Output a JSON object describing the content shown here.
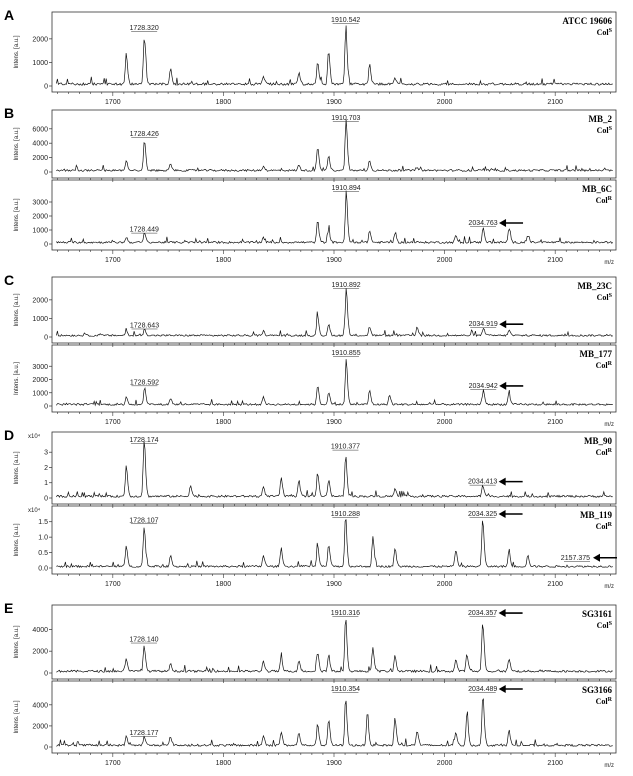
{
  "chart_data": [
    {
      "type": "line",
      "panel": "A",
      "strain": "ATCC 19606",
      "col_base": "Col",
      "col_sup": "S",
      "ylabel": "Intens. [a.u.]",
      "y_multiplier": "",
      "yticks": [
        "0",
        "1000",
        "2000"
      ],
      "ylim": [
        0,
        2800
      ],
      "xlim": [
        1645,
        2155
      ],
      "xticks": [
        1700,
        1800,
        1900,
        2000,
        2100
      ],
      "xlabel": "",
      "unit_label": "",
      "peaks": [
        {
          "mz": 1712,
          "h": 1100
        },
        {
          "mz": 1728.32,
          "h": 1700,
          "label": "1728.320"
        },
        {
          "mz": 1752,
          "h": 550
        },
        {
          "mz": 1836,
          "h": 300
        },
        {
          "mz": 1868,
          "h": 400
        },
        {
          "mz": 1885,
          "h": 800
        },
        {
          "mz": 1895,
          "h": 1200
        },
        {
          "mz": 1910.542,
          "h": 2100,
          "label": "1910.542"
        },
        {
          "mz": 1932,
          "h": 700
        },
        {
          "mz": 1955,
          "h": 200
        }
      ],
      "arrows": []
    },
    {
      "type": "line",
      "panel": "B",
      "strain": "MB_2",
      "col_base": "Col",
      "col_sup": "S",
      "ylabel": "Intens. [a.u.]",
      "y_multiplier": "",
      "yticks": [
        "0",
        "2000",
        "4000",
        "6000"
      ],
      "ylim": [
        0,
        7500
      ],
      "xlim": [
        1645,
        2155
      ],
      "xticks": [
        1700,
        1800,
        1900,
        2000,
        2100
      ],
      "xlabel": "",
      "unit_label": "",
      "peaks": [
        {
          "mz": 1712,
          "h": 1200
        },
        {
          "mz": 1728.426,
          "h": 3500,
          "label": "1728.426"
        },
        {
          "mz": 1752,
          "h": 800
        },
        {
          "mz": 1836,
          "h": 500
        },
        {
          "mz": 1868,
          "h": 600
        },
        {
          "mz": 1885,
          "h": 2700
        },
        {
          "mz": 1895,
          "h": 1700
        },
        {
          "mz": 1910.703,
          "h": 6300,
          "label": "1910.703"
        },
        {
          "mz": 1932,
          "h": 1200
        },
        {
          "mz": 1975,
          "h": 400
        }
      ],
      "arrows": []
    },
    {
      "type": "line",
      "panel": "B",
      "strain": "MB_6C",
      "col_base": "Col",
      "col_sup": "R",
      "ylabel": "Intens. [a.u.]",
      "y_multiplier": "",
      "yticks": [
        "0",
        "1000",
        "2000",
        "3000"
      ],
      "ylim": [
        0,
        4000
      ],
      "xlim": [
        1645,
        2155
      ],
      "xticks": [
        1700,
        1800,
        1900,
        2000,
        2100
      ],
      "xlabel": "",
      "unit_label": "m/z",
      "peaks": [
        {
          "mz": 1712,
          "h": 300
        },
        {
          "mz": 1728.449,
          "h": 550,
          "label": "1728.449"
        },
        {
          "mz": 1836,
          "h": 300
        },
        {
          "mz": 1885,
          "h": 1300
        },
        {
          "mz": 1895,
          "h": 700
        },
        {
          "mz": 1910.894,
          "h": 3100,
          "label": "1910.894"
        },
        {
          "mz": 1932,
          "h": 700
        },
        {
          "mz": 1955,
          "h": 500
        },
        {
          "mz": 2010,
          "h": 400
        },
        {
          "mz": 2034.763,
          "h": 900,
          "label": "2034.763"
        },
        {
          "mz": 2058,
          "h": 800
        },
        {
          "mz": 2075,
          "h": 400
        }
      ],
      "arrows": [
        {
          "mz": 2034.763
        }
      ]
    },
    {
      "type": "line",
      "panel": "C",
      "strain": "MB_23C",
      "col_base": "Col",
      "col_sup": "S",
      "ylabel": "Intens. [a.u.]",
      "y_multiplier": "",
      "yticks": [
        "0",
        "1000",
        "2000"
      ],
      "ylim": [
        0,
        2800
      ],
      "xlim": [
        1645,
        2155
      ],
      "xticks": [
        1700,
        1800,
        1900,
        2000,
        2100
      ],
      "xlabel": "",
      "unit_label": "",
      "peaks": [
        {
          "mz": 1712,
          "h": 200
        },
        {
          "mz": 1728.643,
          "h": 300,
          "label": "1728.643"
        },
        {
          "mz": 1836,
          "h": 200
        },
        {
          "mz": 1885,
          "h": 900
        },
        {
          "mz": 1895,
          "h": 500
        },
        {
          "mz": 1910.892,
          "h": 2200,
          "label": "1910.892"
        },
        {
          "mz": 1932,
          "h": 400
        },
        {
          "mz": 1975,
          "h": 400
        },
        {
          "mz": 2034.919,
          "h": 350,
          "label": "2034.919"
        },
        {
          "mz": 2058,
          "h": 250
        }
      ],
      "arrows": [
        {
          "mz": 2034.919
        }
      ]
    },
    {
      "type": "line",
      "panel": "C",
      "strain": "MB_177",
      "col_base": "Col",
      "col_sup": "R",
      "ylabel": "Intens. [a.u.]",
      "y_multiplier": "",
      "yticks": [
        "0",
        "1000",
        "2000",
        "3000"
      ],
      "ylim": [
        0,
        4000
      ],
      "xlim": [
        1645,
        2155
      ],
      "xticks": [
        1700,
        1800,
        1900,
        2000,
        2100
      ],
      "xlabel": "",
      "unit_label": "m/z",
      "peaks": [
        {
          "mz": 1712,
          "h": 500
        },
        {
          "mz": 1728.592,
          "h": 1100,
          "label": "1728.592"
        },
        {
          "mz": 1752,
          "h": 400
        },
        {
          "mz": 1836,
          "h": 500
        },
        {
          "mz": 1885,
          "h": 1200
        },
        {
          "mz": 1895,
          "h": 800
        },
        {
          "mz": 1910.855,
          "h": 2900,
          "label": "1910.855"
        },
        {
          "mz": 1932,
          "h": 900
        },
        {
          "mz": 1950,
          "h": 600
        },
        {
          "mz": 2034.942,
          "h": 900,
          "label": "2034.942"
        },
        {
          "mz": 2058,
          "h": 700
        }
      ],
      "arrows": [
        {
          "mz": 2034.942
        }
      ]
    },
    {
      "type": "line",
      "panel": "D",
      "strain": "MB_90",
      "col_base": "Col",
      "col_sup": "R",
      "ylabel": "Intens. [a.u.]",
      "y_multiplier": "x10⁴",
      "yticks": [
        "0",
        "1",
        "2",
        "3"
      ],
      "ylim": [
        0,
        3.8
      ],
      "xlim": [
        1645,
        2155
      ],
      "xticks": [
        1700,
        1800,
        1900,
        2000,
        2100
      ],
      "xlabel": "",
      "unit_label": "",
      "peaks": [
        {
          "mz": 1712,
          "h": 1.7
        },
        {
          "mz": 1728.174,
          "h": 3.3,
          "label": "1728.174"
        },
        {
          "mz": 1770,
          "h": 0.6
        },
        {
          "mz": 1836,
          "h": 0.5
        },
        {
          "mz": 1852,
          "h": 1.0
        },
        {
          "mz": 1868,
          "h": 0.9
        },
        {
          "mz": 1885,
          "h": 1.3
        },
        {
          "mz": 1895,
          "h": 0.9
        },
        {
          "mz": 1910.377,
          "h": 2.3,
          "label": "1910.377"
        },
        {
          "mz": 1955,
          "h": 0.4
        },
        {
          "mz": 2034.413,
          "h": 0.6,
          "label": "2034.413"
        }
      ],
      "arrows": [
        {
          "mz": 2034.413
        }
      ]
    },
    {
      "type": "line",
      "panel": "D",
      "strain": "MB_119",
      "col_base": "Col",
      "col_sup": "R",
      "ylabel": "Intens. [a.u.]",
      "y_multiplier": "x10⁴",
      "yticks": [
        "0.0",
        "0.5",
        "1.0",
        "1.5"
      ],
      "ylim": [
        0,
        1.75
      ],
      "xlim": [
        1645,
        2155
      ],
      "xticks": [
        1700,
        1800,
        1900,
        2000,
        2100
      ],
      "xlabel": "",
      "unit_label": "m/z",
      "peaks": [
        {
          "mz": 1712,
          "h": 0.55
        },
        {
          "mz": 1728.107,
          "h": 1.05,
          "label": "1728.107"
        },
        {
          "mz": 1752,
          "h": 0.3
        },
        {
          "mz": 1836,
          "h": 0.3
        },
        {
          "mz": 1852,
          "h": 0.5
        },
        {
          "mz": 1885,
          "h": 0.55
        },
        {
          "mz": 1895,
          "h": 0.6
        },
        {
          "mz": 1910.288,
          "h": 1.4,
          "label": "1910.288"
        },
        {
          "mz": 1935,
          "h": 0.8
        },
        {
          "mz": 1955,
          "h": 0.5
        },
        {
          "mz": 2010,
          "h": 0.45
        },
        {
          "mz": 2034.325,
          "h": 1.3,
          "label": "2034.325"
        },
        {
          "mz": 2058,
          "h": 0.4
        },
        {
          "mz": 2075,
          "h": 0.3
        },
        {
          "mz": 2157.375,
          "h": 0.15,
          "label": "2157.375"
        }
      ],
      "arrows": [
        {
          "mz": 2034.325
        },
        {
          "mz": 2157.375
        }
      ]
    },
    {
      "type": "line",
      "panel": "E",
      "strain": "SG3161",
      "col_base": "Col",
      "col_sup": "S",
      "ylabel": "Intens. [a.u.]",
      "y_multiplier": "",
      "yticks": [
        "0",
        "2000",
        "4000"
      ],
      "ylim": [
        0,
        5500
      ],
      "xlim": [
        1645,
        2155
      ],
      "xticks": [
        1700,
        1800,
        1900,
        2000,
        2100
      ],
      "xlabel": "",
      "unit_label": "",
      "peaks": [
        {
          "mz": 1712,
          "h": 1000
        },
        {
          "mz": 1728.14,
          "h": 2000,
          "label": "1728.140"
        },
        {
          "mz": 1752,
          "h": 600
        },
        {
          "mz": 1836,
          "h": 800
        },
        {
          "mz": 1852,
          "h": 1000
        },
        {
          "mz": 1868,
          "h": 800
        },
        {
          "mz": 1885,
          "h": 1500
        },
        {
          "mz": 1895,
          "h": 1200
        },
        {
          "mz": 1910.316,
          "h": 4200,
          "label": "1910.316"
        },
        {
          "mz": 1935,
          "h": 1800
        },
        {
          "mz": 1955,
          "h": 1200
        },
        {
          "mz": 2010,
          "h": 900
        },
        {
          "mz": 2020,
          "h": 1300
        },
        {
          "mz": 2034.357,
          "h": 3800,
          "label": "2034.357"
        },
        {
          "mz": 2058,
          "h": 1000
        }
      ],
      "arrows": [
        {
          "mz": 2034.357
        }
      ]
    },
    {
      "type": "line",
      "panel": "E",
      "strain": "SG3166",
      "col_base": "Col",
      "col_sup": "R",
      "ylabel": "Intens. [a.u.]",
      "y_multiplier": "",
      "yticks": [
        "0",
        "2000",
        "4000"
      ],
      "ylim": [
        0,
        5500
      ],
      "xlim": [
        1645,
        2155
      ],
      "xticks": [
        1700,
        1800,
        1900,
        2000,
        2100
      ],
      "xlabel": "",
      "unit_label": "m/z",
      "peaks": [
        {
          "mz": 1712,
          "h": 700
        },
        {
          "mz": 1728.177,
          "h": 700,
          "label": "1728.177"
        },
        {
          "mz": 1752,
          "h": 700
        },
        {
          "mz": 1836,
          "h": 800
        },
        {
          "mz": 1852,
          "h": 1100
        },
        {
          "mz": 1868,
          "h": 1000
        },
        {
          "mz": 1885,
          "h": 1700
        },
        {
          "mz": 1895,
          "h": 2100
        },
        {
          "mz": 1910.354,
          "h": 3800,
          "label": "1910.354"
        },
        {
          "mz": 1930,
          "h": 2700
        },
        {
          "mz": 1955,
          "h": 2200
        },
        {
          "mz": 1975,
          "h": 1200
        },
        {
          "mz": 2010,
          "h": 1100
        },
        {
          "mz": 2020,
          "h": 2500
        },
        {
          "mz": 2034.489,
          "h": 4000,
          "label": "2034.489"
        },
        {
          "mz": 2058,
          "h": 1200
        }
      ],
      "arrows": [
        {
          "mz": 2034.489
        }
      ]
    }
  ]
}
